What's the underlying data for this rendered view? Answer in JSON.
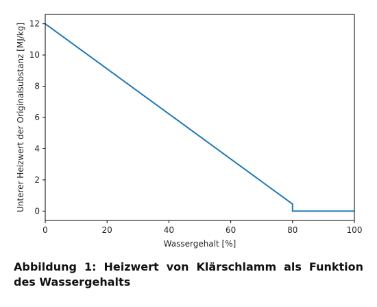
{
  "chart_data": {
    "type": "line",
    "xlabel": "Wassergehalt [%]",
    "ylabel": "Unterer Heizwert der Originalsubstanz [MJ/kg]",
    "xlim": [
      0,
      100
    ],
    "ylim": [
      -0.6,
      12.6
    ],
    "xticks": [
      0,
      20,
      40,
      60,
      80,
      100
    ],
    "yticks": [
      0,
      2,
      4,
      6,
      8,
      10,
      12
    ],
    "grid": false,
    "series": [
      {
        "color": "#1f77b4",
        "x": [
          0,
          80,
          80,
          100
        ],
        "y": [
          12,
          0.45,
          0,
          0
        ]
      }
    ]
  },
  "caption": "Abbildung 1: Heizwert von Klärschlamm als Funktion des Wassergehalts"
}
